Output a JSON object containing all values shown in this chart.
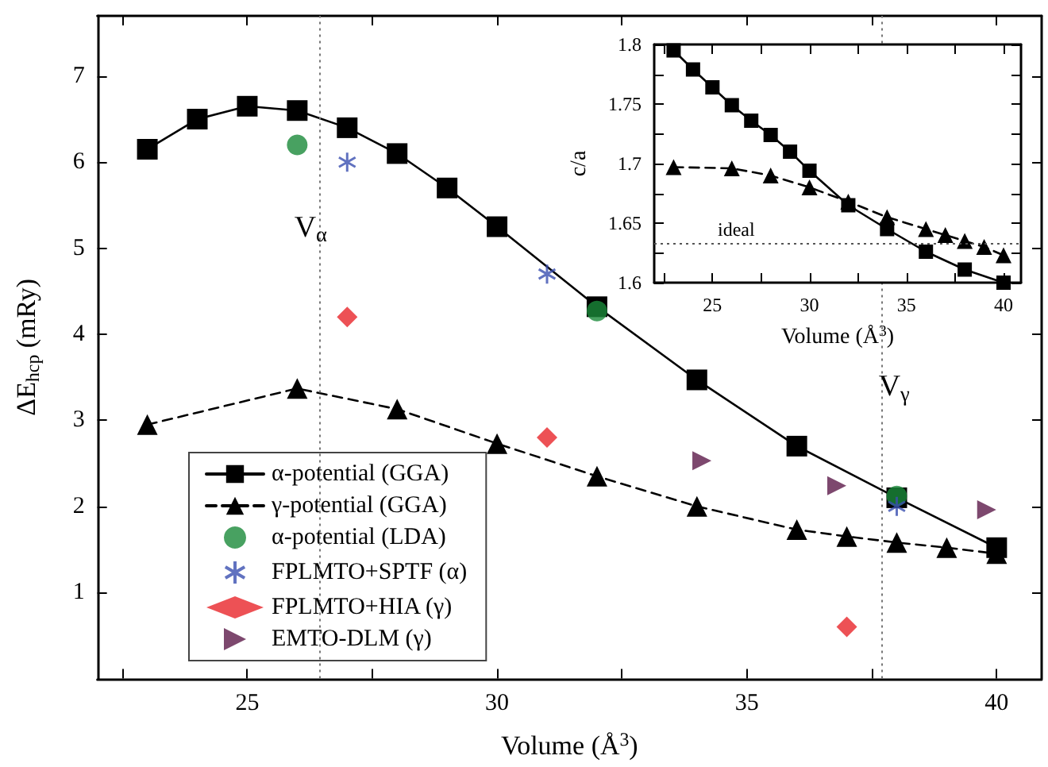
{
  "chart_data": [
    {
      "type": "line",
      "xlabel": "Volume (Å$^{3}$)",
      "ylabel": "ΔE$_{hcp}$ (mRy)",
      "xlim": [
        22,
        40.9
      ],
      "ylim": [
        0,
        7.7
      ],
      "xticks": [
        {
          "value": 22.5,
          "label": null
        },
        25,
        {
          "value": 27.5,
          "label": null
        },
        30,
        {
          "value": 32.5,
          "label": null
        },
        35,
        {
          "value": 37.5,
          "label": null
        },
        40
      ],
      "yticks": [
        1,
        2,
        3,
        4,
        5,
        6,
        7
      ],
      "grid": false,
      "legend": "bottom left",
      "series": [
        {
          "name": "α-potential (GGA)",
          "type": "line",
          "color": "#000000",
          "marker": "square",
          "line_style": "solid",
          "x": [
            23,
            24,
            25,
            26,
            27,
            28,
            29,
            30,
            32,
            34,
            36,
            38,
            40
          ],
          "values": [
            6.15,
            6.5,
            6.65,
            6.6,
            6.4,
            6.1,
            5.7,
            5.25,
            4.32,
            3.47,
            2.7,
            2.1,
            1.52
          ]
        },
        {
          "name": "γ-potential (GGA)",
          "type": "line",
          "color": "#000000",
          "marker": "triangle",
          "line_style": "dashed",
          "x": [
            23,
            26,
            28,
            30,
            32,
            34,
            36,
            37,
            38,
            39,
            40
          ],
          "values": [
            2.95,
            3.37,
            3.13,
            2.73,
            2.35,
            2.0,
            1.73,
            1.65,
            1.58,
            1.52,
            1.45
          ]
        },
        {
          "name": "α-potential (LDA)",
          "type": "scatter",
          "color": "#1a8a3a",
          "marker": "circle",
          "x": [
            26,
            32,
            38
          ],
          "values": [
            6.2,
            4.27,
            2.12
          ]
        },
        {
          "name": "FPLMTO+SPTF (α)",
          "type": "scatter",
          "color": "#3a4fb0",
          "marker": "cross",
          "x": [
            27,
            31,
            38
          ],
          "values": [
            6.0,
            4.7,
            2.0
          ]
        },
        {
          "name": "FPLMTO+HIA (γ)",
          "type": "scatter",
          "color": "#e8262a",
          "marker": "diamond",
          "x": [
            27,
            31,
            37
          ],
          "values": [
            4.2,
            2.8,
            0.6
          ]
        },
        {
          "name": "EMTO-DLM (γ)",
          "type": "scatter",
          "color": "#5c1a4a",
          "marker": "triangle-right",
          "x": [
            34.1,
            36.8,
            39.8
          ],
          "values": [
            2.53,
            2.24,
            1.96
          ]
        }
      ],
      "ref_lines": [
        {
          "axis": "x",
          "value": 26.45,
          "label": "V$_{α}$",
          "color": "#777777",
          "line_style": "dotted"
        },
        {
          "axis": "x",
          "value": 37.7,
          "label": "V$_{γ}$",
          "color": "#777777",
          "line_style": "dotted"
        }
      ]
    },
    {
      "type": "line",
      "xlabel": "Volume (Å$^{3}$)",
      "ylabel": "c/a",
      "xlim": [
        22,
        40.9
      ],
      "ylim": [
        1.6,
        1.8
      ],
      "xticks": [
        {
          "value": 22.5,
          "label": null
        },
        25,
        {
          "value": 27.5,
          "label": null
        },
        30,
        {
          "value": 32.5,
          "label": null
        },
        35,
        {
          "value": 37.5,
          "label": null
        },
        40
      ],
      "yticks": [
        {
          "value": 1.6,
          "label": "1.6"
        },
        {
          "value": 1.625,
          "label": null
        },
        {
          "value": 1.65,
          "label": "1.65"
        },
        {
          "value": 1.675,
          "label": null
        },
        {
          "value": 1.7,
          "label": "1.7"
        },
        {
          "value": 1.725,
          "label": null
        },
        {
          "value": 1.75,
          "label": "1.75"
        },
        {
          "value": 1.775,
          "label": null
        },
        {
          "value": 1.8,
          "label": "1.8"
        }
      ],
      "grid": false,
      "legend": false,
      "series": [
        {
          "type": "line",
          "color": "#000000",
          "marker": "square",
          "line_style": "solid",
          "x": [
            23,
            24,
            25,
            26,
            27,
            28,
            29,
            30,
            32,
            34,
            36,
            38,
            40
          ],
          "values": [
            1.795,
            1.779,
            1.764,
            1.749,
            1.736,
            1.724,
            1.71,
            1.694,
            1.665,
            1.645,
            1.626,
            1.611,
            1.6
          ]
        },
        {
          "type": "line",
          "color": "#000000",
          "marker": "triangle",
          "line_style": "dashed",
          "x": [
            23,
            26,
            28,
            30,
            32,
            34,
            36,
            37,
            38,
            39,
            40
          ],
          "values": [
            1.697,
            1.696,
            1.69,
            1.68,
            1.668,
            1.655,
            1.645,
            1.64,
            1.635,
            1.63,
            1.623
          ]
        }
      ],
      "ref_lines": [
        {
          "axis": "y",
          "value": 1.633,
          "label": "ideal",
          "color": "#555555",
          "line_style": "dotted"
        }
      ]
    }
  ]
}
